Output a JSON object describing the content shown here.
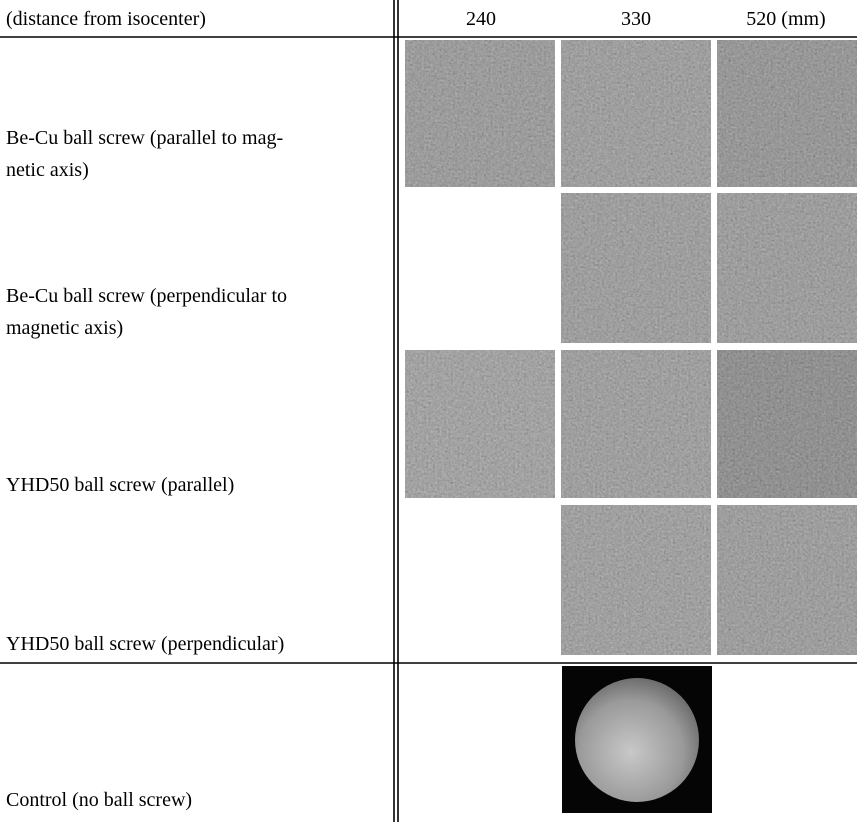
{
  "header": {
    "label": "(distance from isocenter)",
    "columns": [
      "240",
      "330",
      "520 (mm)"
    ]
  },
  "rows": [
    {
      "label_lines": [
        "Be-Cu ball screw (parallel to mag-",
        "netic axis)"
      ]
    },
    {
      "label_lines": [
        "Be-Cu ball screw (perpendicular to",
        "magnetic axis)"
      ]
    },
    {
      "label_lines": [
        "YHD50 ball screw (parallel)"
      ]
    },
    {
      "label_lines": [
        "YHD50 ball screw (perpendicular)"
      ]
    },
    {
      "label_lines": [
        "Control (no ball screw)"
      ]
    }
  ]
}
